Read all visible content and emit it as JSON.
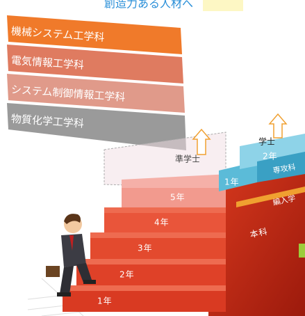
{
  "header": {
    "title": "創造力ある人材へ"
  },
  "departments": [
    "機械システム工学科",
    "電気情報工学科",
    "システム制御情報工学科",
    "物質化学工学科"
  ],
  "course": {
    "label": "本科",
    "years": [
      "1年",
      "2年",
      "3年",
      "4年",
      "5年"
    ],
    "degree": "準学士"
  },
  "advanced": {
    "label": "専攻科",
    "years": [
      "1年",
      "2年"
    ],
    "degree": "学士"
  },
  "transfer": "編入学"
}
